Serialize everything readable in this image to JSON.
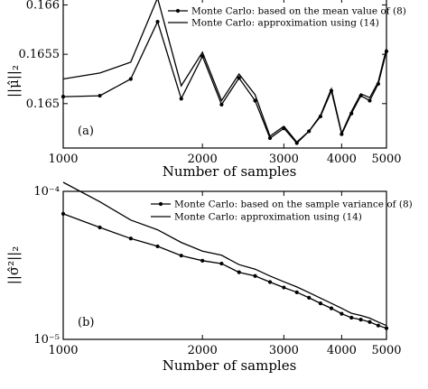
{
  "chart_data": [
    {
      "type": "line",
      "panel_label": "(a)",
      "ylabel": "||μ̂||₂",
      "xlabel": "Number of samples",
      "x_scale": "log",
      "xlim": [
        1000,
        5000
      ],
      "ylim": [
        0.16455,
        0.16605
      ],
      "x_ticks": [
        1000,
        2000,
        3000,
        4000,
        5000
      ],
      "x_tick_labels": [
        "1000",
        "2000",
        "3000",
        "4000",
        "5000"
      ],
      "y_ticks": [
        0.165,
        0.1655,
        0.166
      ],
      "y_tick_labels": [
        "0.165",
        "0.1655",
        "0.166"
      ],
      "legend_position": "top-right",
      "x": [
        1000,
        1200,
        1400,
        1600,
        1800,
        2000,
        2200,
        2400,
        2600,
        2800,
        3000,
        3200,
        3400,
        3600,
        3800,
        4000,
        4200,
        4400,
        4600,
        4800,
        5000
      ],
      "series": [
        {
          "name": "Monte Carlo: based on the mean value of (8)",
          "marker": "dot",
          "values": [
            0.16507,
            0.16508,
            0.16525,
            0.16583,
            0.16505,
            0.16548,
            0.16499,
            0.16526,
            0.16503,
            0.16465,
            0.16475,
            0.1646,
            0.16472,
            0.16487,
            0.16513,
            0.16469,
            0.1649,
            0.16508,
            0.16503,
            0.1652,
            0.16553
          ]
        },
        {
          "name": "Monte Carlo: approximation using (14)",
          "marker": "none",
          "values": [
            0.16525,
            0.16531,
            0.16542,
            0.16607,
            0.16518,
            0.16552,
            0.16503,
            0.1653,
            0.16509,
            0.16467,
            0.16477,
            0.16461,
            0.16472,
            0.16488,
            0.16515,
            0.1647,
            0.16492,
            0.1651,
            0.16506,
            0.16522,
            0.16556
          ]
        }
      ]
    },
    {
      "type": "line",
      "panel_label": "(b)",
      "ylabel": "||σ̂²||₂",
      "xlabel": "Number of samples",
      "x_scale": "log",
      "y_scale": "log",
      "xlim": [
        1000,
        5000
      ],
      "ylim": [
        1e-05,
        0.0001
      ],
      "x_ticks": [
        1000,
        2000,
        3000,
        4000,
        5000
      ],
      "x_tick_labels": [
        "1000",
        "2000",
        "3000",
        "4000",
        "5000"
      ],
      "y_ticks": [
        1e-05,
        0.0001
      ],
      "y_tick_labels": [
        "10⁻⁵",
        "10⁻⁴"
      ],
      "legend_position": "top-right",
      "x": [
        1000,
        1200,
        1400,
        1600,
        1800,
        2000,
        2200,
        2400,
        2600,
        2800,
        3000,
        3200,
        3400,
        3600,
        3800,
        4000,
        4200,
        4400,
        4600,
        4800,
        5000
      ],
      "series": [
        {
          "name": "Monte Carlo: based on the sample variance of (8)",
          "marker": "dot",
          "values": [
            7.05e-05,
            5.7e-05,
            4.8e-05,
            4.25e-05,
            3.68e-05,
            3.4e-05,
            3.25e-05,
            2.84e-05,
            2.68e-05,
            2.44e-05,
            2.24e-05,
            2.08e-05,
            1.91e-05,
            1.75e-05,
            1.62e-05,
            1.49e-05,
            1.4e-05,
            1.36e-05,
            1.31e-05,
            1.24e-05,
            1.19e-05
          ]
        },
        {
          "name": "Monte Carlo: approximation using (14)",
          "marker": "none",
          "values": [
            0.000115,
            8.5e-05,
            6.4e-05,
            5.5e-05,
            4.52e-05,
            3.95e-05,
            3.7e-05,
            3.2e-05,
            2.98e-05,
            2.68e-05,
            2.45e-05,
            2.26e-05,
            2.07e-05,
            1.9e-05,
            1.75e-05,
            1.62e-05,
            1.5e-05,
            1.45e-05,
            1.39e-05,
            1.31e-05,
            1.24e-05
          ]
        }
      ]
    }
  ]
}
